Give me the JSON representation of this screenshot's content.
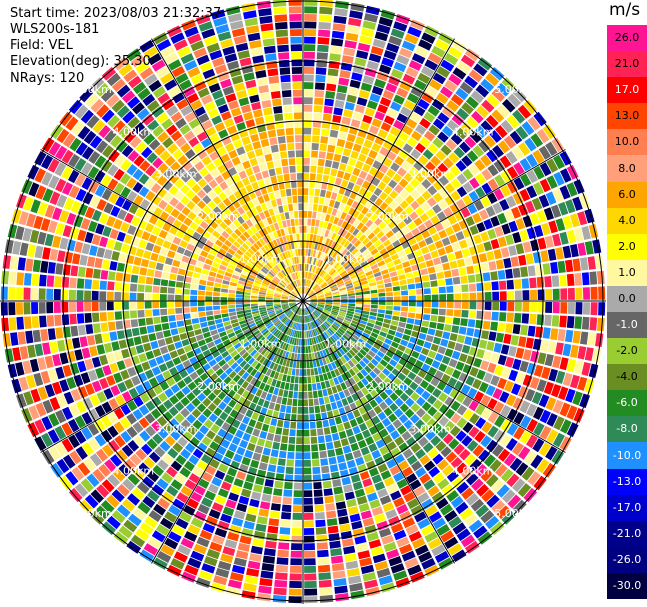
{
  "header": {
    "start_time": "Start time: 2023/08/03 21:32:37",
    "instrument": "WLS200s-181",
    "field": "Field: VEL",
    "elevation": "Elevation(deg): 35.30",
    "nrays": "NRays: 120"
  },
  "colorbar": {
    "unit": "m/s",
    "labels": [
      "26.0",
      "21.0",
      "17.0",
      "13.0",
      "10.0",
      "8.0",
      "6.0",
      "4.0",
      "2.0",
      "1.0",
      "0.0",
      "-1.0",
      "-2.0",
      "-4.0",
      "-6.0",
      "-8.0",
      "-10.0",
      "-13.0",
      "-17.0",
      "-21.0",
      "-26.0",
      "-30.0"
    ],
    "colors": [
      "#ff1493",
      "#ff2255",
      "#ff0000",
      "#ff4500",
      "#ff7f50",
      "#ffa07a",
      "#ffa500",
      "#ffd700",
      "#ffff00",
      "#fff8a0",
      "#aaaaaa",
      "#666666",
      "#9acd32",
      "#6b8e23",
      "#228b22",
      "#2e8b57",
      "#1e90ff",
      "#0000ff",
      "#0000cd",
      "#00008b",
      "#000080",
      "#000040"
    ]
  },
  "chart_data": {
    "type": "heatmap",
    "projection": "polar (PPI)",
    "field": "VEL",
    "units": "m/s",
    "nrays": 120,
    "range_ring_labels": [
      "1.00km",
      "2.00km",
      "3.00km",
      "4.00km",
      "5.00km"
    ],
    "colorscale_range": [
      -30.0,
      26.0
    ],
    "velocity_pattern": {
      "north_sector": "positive, ~1 to 8 m/s (yellow / orange)",
      "south_sector": "negative, ~-4 to -10 m/s (green / blue)",
      "beyond_about_3km": "noisy, all colours"
    }
  }
}
